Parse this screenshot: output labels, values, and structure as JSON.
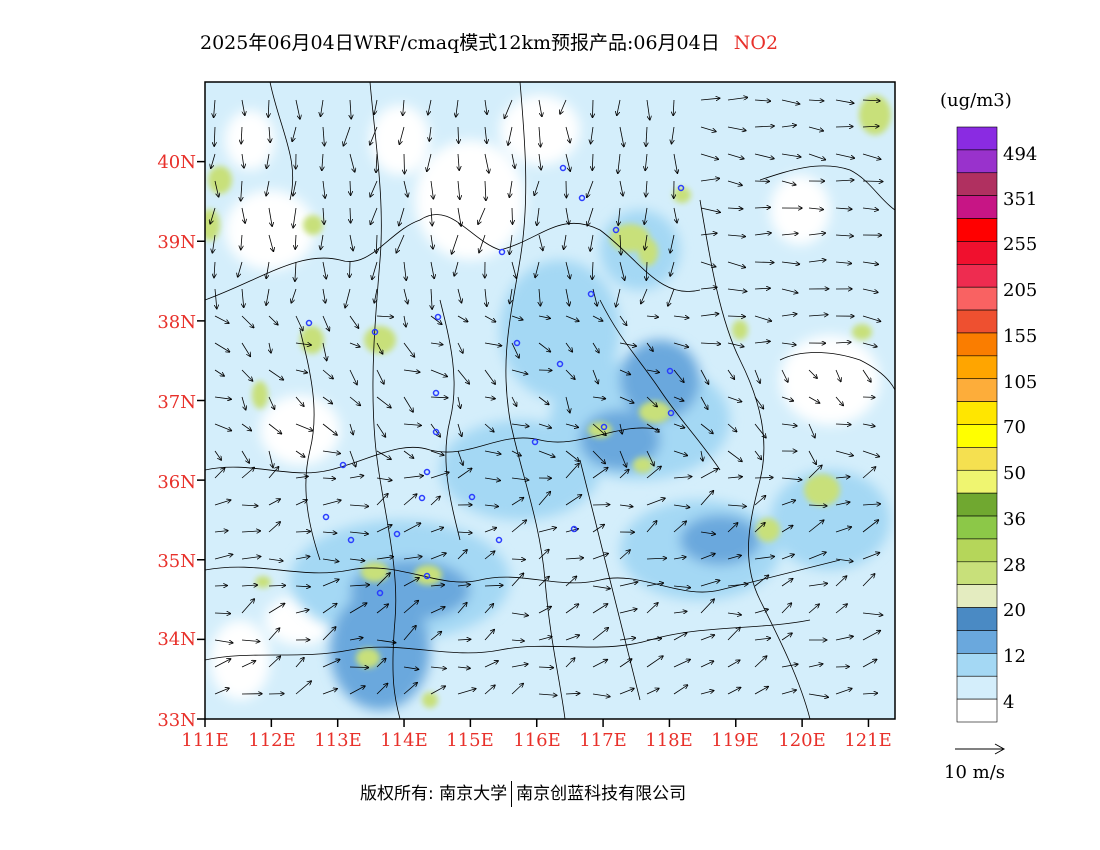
{
  "header": {
    "title": "2025年06月04日WRF/cmaq模式12km预报产品:06月04日",
    "pollutant": "NO2"
  },
  "map": {
    "lat_labels": [
      "40N",
      "39N",
      "38N",
      "37N",
      "36N",
      "35N",
      "34N",
      "33N"
    ],
    "lon_labels": [
      "111E",
      "112E",
      "113E",
      "114E",
      "115E",
      "116E",
      "117E",
      "118E",
      "119E",
      "120E",
      "121E"
    ],
    "lat_values": [
      40,
      39,
      38,
      37,
      36,
      35,
      34,
      33
    ],
    "lon_values": [
      111,
      112,
      113,
      114,
      115,
      116,
      117,
      118,
      119,
      120,
      121
    ],
    "lat_range": [
      33,
      41
    ],
    "lon_range": [
      111,
      121.4
    ]
  },
  "legend": {
    "units": "(ug/m3)",
    "levels": [
      "494",
      "351",
      "255",
      "205",
      "155",
      "105",
      "70",
      "50",
      "36",
      "28",
      "20",
      "12",
      "4"
    ],
    "colors": [
      "#8a2be2",
      "#9932cc",
      "#b03060",
      "#c71585",
      "#ff0000",
      "#f0102e",
      "#ee2c50",
      "#f96262",
      "#ee5030",
      "#fa7d00",
      "#ffa500",
      "#fdad3a",
      "#ffe600",
      "#ffff00",
      "#f5e050",
      "#eff570",
      "#70a830",
      "#8cc848",
      "#b5d65a",
      "#c8e07a",
      "#e4ecc0",
      "#4a8ac4",
      "#6aa8dd",
      "#a4d8f4",
      "#d4eefb",
      "#ffffff"
    ],
    "wind_reference": "10 m/s"
  },
  "footer": {
    "copyright": "版权所有: 南京大学",
    "company": "南京创蓝科技有限公司"
  }
}
